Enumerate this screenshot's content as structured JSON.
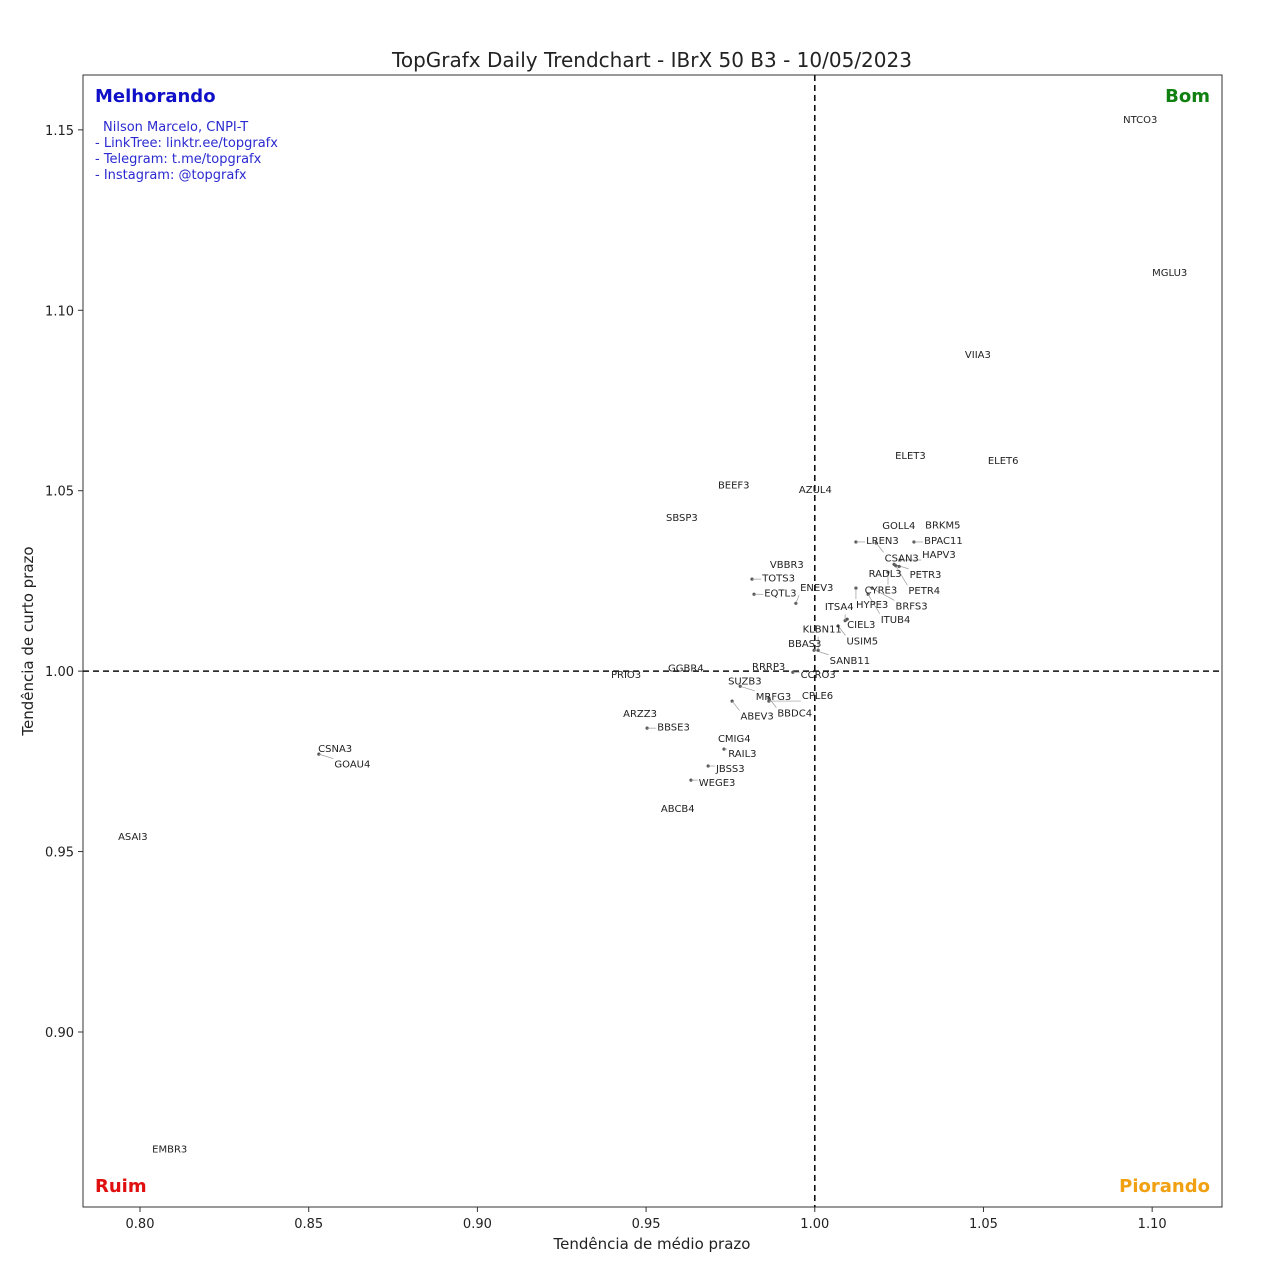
{
  "chart_data": {
    "type": "scatter",
    "title": "TopGrafx Daily Trendchart - IBrX 50 B3 - 10/05/2023",
    "xlabel": "Tendência de médio prazo",
    "ylabel": "Tendência de curto prazo",
    "xlim": [
      0.7831,
      1.1207
    ],
    "ylim": [
      0.8515,
      1.1652
    ],
    "xticks": [
      0.8,
      0.85,
      0.9,
      0.95,
      1.0,
      1.05,
      1.1
    ],
    "yticks": [
      0.9,
      0.95,
      1.0,
      1.05,
      1.1,
      1.15
    ],
    "xtick_labels": [
      "0.80",
      "0.85",
      "0.90",
      "0.95",
      "1.00",
      "1.05",
      "1.10"
    ],
    "ytick_labels": [
      "0.90",
      "0.95",
      "1.00",
      "1.05",
      "1.10",
      "1.15"
    ],
    "reference_lines": {
      "x": 1.0,
      "y": 1.0
    },
    "grid": false,
    "quadrants": {
      "top_left": {
        "label": "Melhorando",
        "color": "#1010c8"
      },
      "top_right": {
        "label": "Bom",
        "color": "#108010"
      },
      "bottom_left": {
        "label": "Ruim",
        "color": "#e01010"
      },
      "bottom_right": {
        "label": "Piorando",
        "color": "#f0a010"
      }
    },
    "credits": [
      "Nilson Marcelo, CNPI-T",
      "- LinkTree: linktr.ee/topgrafx",
      "- Telegram: t.me/topgrafx",
      "- Instagram: @topgrafx"
    ],
    "points": [
      {
        "label": "NTCO3",
        "x": 1.0914,
        "y": 1.1513
      },
      {
        "label": "MGLU3",
        "x": 1.1,
        "y": 1.1089
      },
      {
        "label": "VIIA3",
        "x": 1.0445,
        "y": 1.0862
      },
      {
        "label": "ELET3",
        "x": 1.0238,
        "y": 1.0582
      },
      {
        "label": "ELET6",
        "x": 1.0513,
        "y": 1.0568
      },
      {
        "label": "BEEF3",
        "x": 0.9713,
        "y": 1.0501
      },
      {
        "label": "AZUL4",
        "x": 0.9953,
        "y": 1.0488
      },
      {
        "label": "SBSP3",
        "x": 0.9559,
        "y": 1.041
      },
      {
        "label": "GOLL4",
        "x": 1.02,
        "y": 1.0388
      },
      {
        "label": "BRKM5",
        "x": 1.0327,
        "y": 1.039
      },
      {
        "label": "LREN3",
        "x": 1.0122,
        "y": 1.0358
      },
      {
        "label": "CSAN3",
        "x": 1.0182,
        "y": 1.0355
      },
      {
        "label": "BPAC11",
        "x": 1.0294,
        "y": 1.0358
      },
      {
        "label": "HAPV3",
        "x": 1.0253,
        "y": 1.0308
      },
      {
        "label": "PETR3",
        "x": 1.0235,
        "y": 1.0296
      },
      {
        "label": "PETR4",
        "x": 1.024,
        "y": 1.0292
      },
      {
        "label": "RADL3",
        "x": 1.025,
        "y": 1.029
      },
      {
        "label": "CYRE3",
        "x": 1.0217,
        "y": 1.0274
      },
      {
        "label": "HYPE3",
        "x": 1.0122,
        "y": 1.023
      },
      {
        "label": "BRFS3",
        "x": 1.017,
        "y": 1.023
      },
      {
        "label": "ITUB4",
        "x": 1.0158,
        "y": 1.0213
      },
      {
        "label": "CIEL3",
        "x": 1.0096,
        "y": 1.0144
      },
      {
        "label": "ITSA4",
        "x": 1.009,
        "y": 1.014
      },
      {
        "label": "USIM5",
        "x": 1.0069,
        "y": 1.0125
      },
      {
        "label": "VBBR3",
        "x": 0.9867,
        "y": 1.028
      },
      {
        "label": "TOTS3",
        "x": 0.9814,
        "y": 1.0255
      },
      {
        "label": "EQTL3",
        "x": 0.982,
        "y": 1.0213
      },
      {
        "label": "ENEV3",
        "x": 0.9944,
        "y": 1.0188
      },
      {
        "label": "BBAS3",
        "x": 0.9921,
        "y": 1.0061
      },
      {
        "label": "SANB11",
        "x": 0.9998,
        "y": 1.0058
      },
      {
        "label": "KLBN11",
        "x": 1.001,
        "y": 1.0058
      },
      {
        "label": "GGBR4",
        "x": 0.9565,
        "y": 0.9994
      },
      {
        "label": "PRIO3",
        "x": 0.9396,
        "y": 0.9975
      },
      {
        "label": "RRRP3",
        "x": 0.9814,
        "y": 0.9997
      },
      {
        "label": "CCRO3",
        "x": 0.9935,
        "y": 0.9997
      },
      {
        "label": "SUZB3",
        "x": 0.9743,
        "y": 0.9958
      },
      {
        "label": "MRFG3",
        "x": 0.9779,
        "y": 0.9958
      },
      {
        "label": "BBDC4",
        "x": 0.9864,
        "y": 0.9925
      },
      {
        "label": "ABEV3",
        "x": 0.9755,
        "y": 0.9917
      },
      {
        "label": "CPLE6",
        "x": 0.9864,
        "y": 0.9917
      },
      {
        "label": "ARZZ3",
        "x": 0.9432,
        "y": 0.9867
      },
      {
        "label": "BBSE3",
        "x": 0.9503,
        "y": 0.9842
      },
      {
        "label": "CMIG4",
        "x": 0.9713,
        "y": 0.9798
      },
      {
        "label": "RAIL3",
        "x": 0.9731,
        "y": 0.9784
      },
      {
        "label": "JBSS3",
        "x": 0.9684,
        "y": 0.9737
      },
      {
        "label": "WEGE3",
        "x": 0.9633,
        "y": 0.9698
      },
      {
        "label": "ABCB4",
        "x": 0.9544,
        "y": 0.9604
      },
      {
        "label": "CSNA3",
        "x": 0.8528,
        "y": 0.977
      },
      {
        "label": "GOAU4",
        "x": 0.853,
        "y": 0.977
      },
      {
        "label": "ASAI3",
        "x": 0.7935,
        "y": 0.9526
      },
      {
        "label": "EMBR3",
        "x": 0.8036,
        "y": 0.8661
      }
    ]
  }
}
